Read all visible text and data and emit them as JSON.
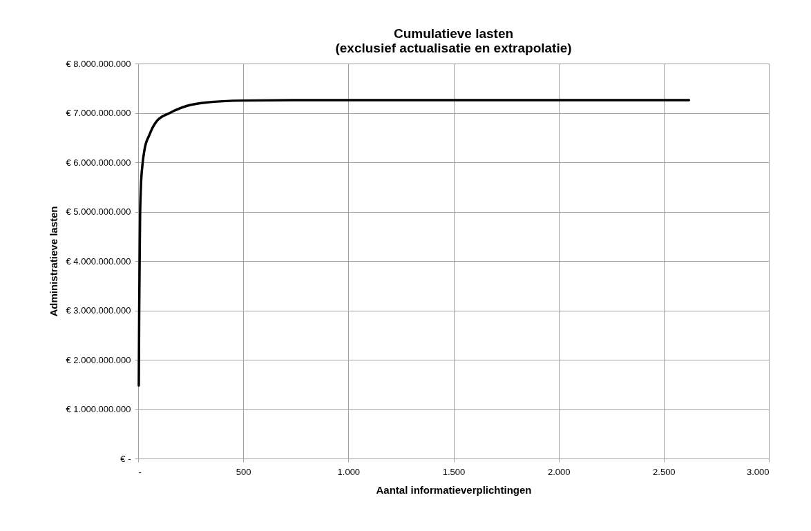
{
  "chart_data": {
    "type": "line",
    "title": "Cumulatieve lasten\n(exclusief actualisatie en extrapolatie)",
    "xlabel": "Aantal informatieverplichtingen",
    "ylabel": "Administratieve lasten",
    "x": [
      3,
      5,
      7,
      9,
      13,
      20,
      30,
      53,
      86,
      151,
      230,
      322,
      500,
      800,
      1200,
      1600,
      2000,
      2400,
      2620
    ],
    "series": [
      {
        "color": "#000000",
        "values": [
          1480000000,
          3000000000,
          4000000000,
          4850000000,
          5500000000,
          5930000000,
          6250000000,
          6550000000,
          6820000000,
          7000000000,
          7140000000,
          7210000000,
          7250000000,
          7260000000,
          7260000000,
          7260000000,
          7260000000,
          7260000000,
          7260000000
        ]
      }
    ],
    "xlim": [
      0,
      3000
    ],
    "xticks": [
      {
        "value": 0,
        "label": "-"
      },
      {
        "value": 500,
        "label": "500"
      },
      {
        "value": 1000,
        "label": "1.000"
      },
      {
        "value": 1500,
        "label": "1.500"
      },
      {
        "value": 2000,
        "label": "2.000"
      },
      {
        "value": 2500,
        "label": "2.500"
      },
      {
        "value": 3000,
        "label": "3.000"
      }
    ],
    "ylim": [
      0,
      8000000000
    ],
    "yticks": [
      {
        "value": 0,
        "label": "€ -"
      },
      {
        "value": 1000000000,
        "label": "€ 1.000.000.000"
      },
      {
        "value": 2000000000,
        "label": "€ 2.000.000.000"
      },
      {
        "value": 3000000000,
        "label": "€ 3.000.000.000"
      },
      {
        "value": 4000000000,
        "label": "€ 4.000.000.000"
      },
      {
        "value": 5000000000,
        "label": "€ 5.000.000.000"
      },
      {
        "value": 6000000000,
        "label": "€ 6.000.000.000"
      },
      {
        "value": 7000000000,
        "label": "€ 7.000.000.000"
      },
      {
        "value": 8000000000,
        "label": "€ 8.000.000.000"
      }
    ],
    "grid": true,
    "marker": "none",
    "line_style": "solid"
  }
}
